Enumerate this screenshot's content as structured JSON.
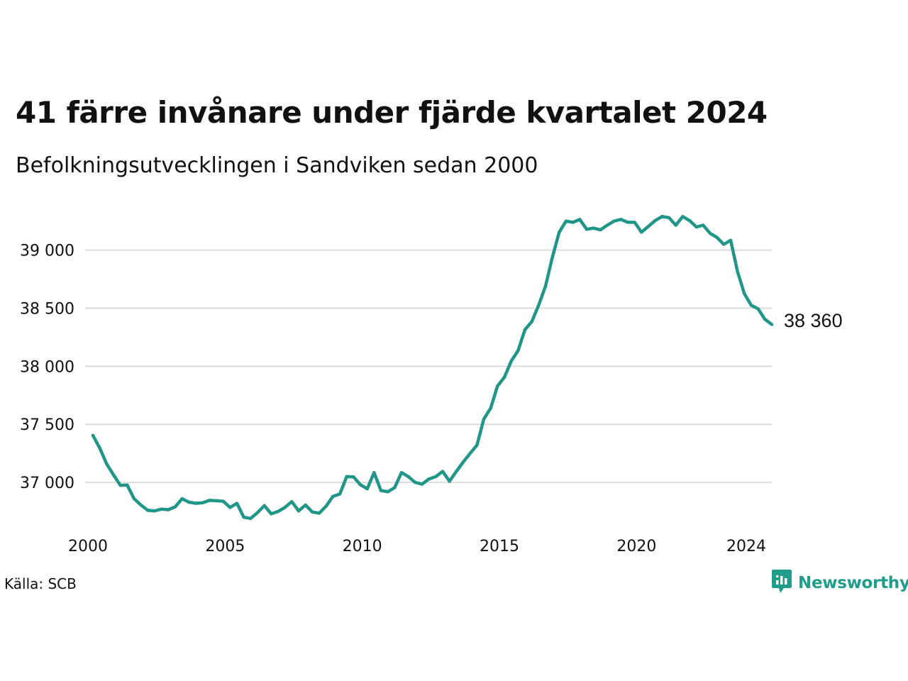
{
  "header": {
    "title": "41 färre invånare under fjärde kvartalet 2024",
    "subtitle": "Befolkningsutvecklingen i Sandviken sedan 2000"
  },
  "footer": {
    "source": "Källa: SCB",
    "brand": "Newsworthy",
    "brand_color": "#1f9d8a",
    "brand_icon": "bar-chart-speech-bubble-icon"
  },
  "colors": {
    "line": "#1f9688",
    "gridline": "#dcdcdc"
  },
  "chart_data": {
    "type": "line",
    "x_unit": "year",
    "y_ticks": [
      {
        "value": 37000,
        "label": "37 000"
      },
      {
        "value": 37500,
        "label": "37 500"
      },
      {
        "value": 38000,
        "label": "38 000"
      },
      {
        "value": 38500,
        "label": "38 500"
      },
      {
        "value": 39000,
        "label": "39 000"
      }
    ],
    "x_ticks": [
      {
        "value": 2000,
        "label": "2000"
      },
      {
        "value": 2005,
        "label": "2005"
      },
      {
        "value": 2010,
        "label": "2010"
      },
      {
        "value": 2015,
        "label": "2015"
      },
      {
        "value": 2020,
        "label": "2020"
      },
      {
        "value": 2024,
        "label": "2024"
      }
    ],
    "ylim": [
      36640,
      39340
    ],
    "xlim": [
      2000,
      2024.75
    ],
    "grid": "horizontal",
    "last_value_label": "38 360",
    "x": [
      2000.0,
      2000.25,
      2000.5,
      2000.75,
      2001.0,
      2001.25,
      2001.5,
      2001.75,
      2002.0,
      2002.25,
      2002.5,
      2002.75,
      2003.0,
      2003.25,
      2003.5,
      2003.75,
      2004.0,
      2004.25,
      2004.5,
      2004.75,
      2005.0,
      2005.25,
      2005.5,
      2005.75,
      2006.0,
      2006.25,
      2006.5,
      2006.75,
      2007.0,
      2007.25,
      2007.5,
      2007.75,
      2008.0,
      2008.25,
      2008.5,
      2008.75,
      2009.0,
      2009.25,
      2009.5,
      2009.75,
      2010.0,
      2010.25,
      2010.5,
      2010.75,
      2011.0,
      2011.25,
      2011.5,
      2011.75,
      2012.0,
      2012.25,
      2012.5,
      2012.75,
      2013.0,
      2013.25,
      2013.5,
      2013.75,
      2014.0,
      2014.25,
      2014.5,
      2014.75,
      2015.0,
      2015.25,
      2015.5,
      2015.75,
      2016.0,
      2016.25,
      2016.5,
      2016.75,
      2017.0,
      2017.25,
      2017.5,
      2017.75,
      2018.0,
      2018.25,
      2018.5,
      2018.75,
      2019.0,
      2019.25,
      2019.5,
      2019.75,
      2020.0,
      2020.25,
      2020.5,
      2020.75,
      2021.0,
      2021.25,
      2021.5,
      2021.75,
      2022.0,
      2022.25,
      2022.5,
      2022.75,
      2023.0,
      2023.25,
      2023.5,
      2023.75,
      2024.0,
      2024.25,
      2024.5,
      2024.75
    ],
    "y": [
      37405,
      37295,
      37160,
      37065,
      36975,
      36978,
      36860,
      36805,
      36760,
      36755,
      36770,
      36765,
      36790,
      36860,
      36830,
      36820,
      36825,
      36845,
      36842,
      36838,
      36785,
      36820,
      36700,
      36690,
      36740,
      36800,
      36730,
      36750,
      36785,
      36835,
      36755,
      36805,
      36745,
      36735,
      36795,
      36880,
      36900,
      37050,
      37048,
      36980,
      36945,
      37085,
      36930,
      36920,
      36955,
      37085,
      37050,
      37000,
      36985,
      37030,
      37050,
      37095,
      37010,
      37095,
      37175,
      37250,
      37320,
      37545,
      37640,
      37830,
      37905,
      38045,
      38135,
      38315,
      38385,
      38525,
      38690,
      38940,
      39155,
      39250,
      39240,
      39265,
      39180,
      39190,
      39175,
      39215,
      39250,
      39265,
      39240,
      39240,
      39155,
      39205,
      39255,
      39290,
      39280,
      39215,
      39290,
      39255,
      39200,
      39215,
      39145,
      39110,
      39050,
      39085,
      38815,
      38625,
      38525,
      38495,
      38405,
      38360
    ]
  }
}
